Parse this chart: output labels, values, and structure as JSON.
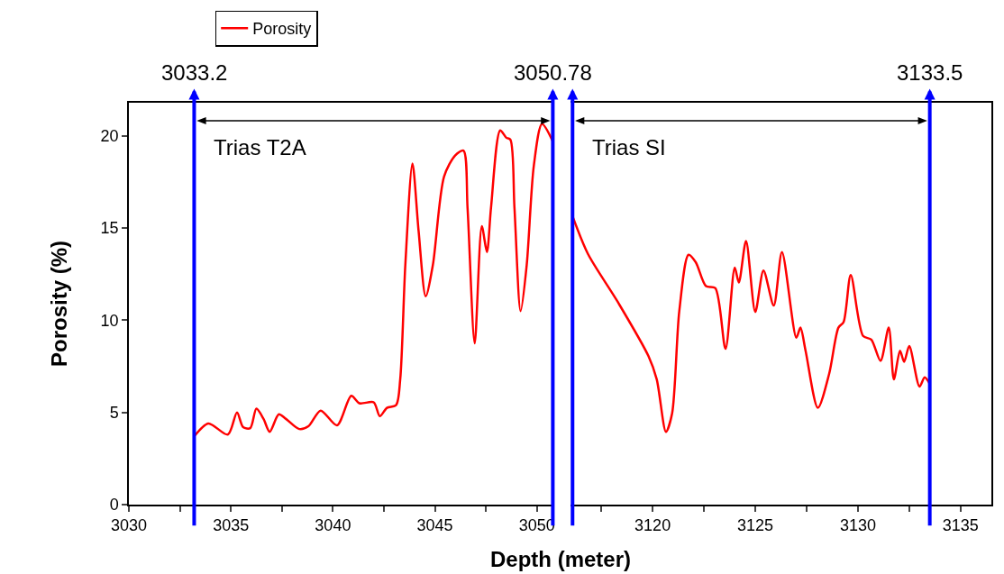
{
  "chart_data": [
    {
      "type": "line",
      "xlabel": "Depth (meter)",
      "ylabel": "Porosity (%)",
      "legend": "top",
      "xlim": [
        3030,
        3050.8
      ],
      "xticks": [
        3030,
        {
          "value": 3032.5,
          "label": null
        },
        3035,
        {
          "value": 3037.5,
          "label": null
        },
        3040,
        {
          "value": 3042.5,
          "label": null
        },
        3045,
        {
          "value": 3047.5,
          "label": null
        },
        3050
      ],
      "ylim": [
        0,
        21.8
      ],
      "yticks": [
        0,
        5,
        10,
        15,
        20
      ],
      "series": [
        {
          "name": "Porosity",
          "color": "#ff0000",
          "x": [
            3033.2,
            3033.9,
            3034.85,
            3035.3,
            3035.6,
            3035.95,
            3036.25,
            3036.6,
            3036.9,
            3037.35,
            3037.7,
            3038.35,
            3038.8,
            3039.4,
            3040.2,
            3040.9,
            3041.3,
            3042.0,
            3042.3,
            3042.65,
            3043.1,
            3043.3,
            3043.55,
            3043.9,
            3044.2,
            3044.55,
            3044.9,
            3045.45,
            3046.0,
            3046.4,
            3046.6,
            3046.95,
            3047.3,
            3047.55,
            3047.75,
            3048.2,
            3048.5,
            3048.7,
            3048.9,
            3049.2,
            3049.5,
            3049.85,
            3050.25,
            3050.78
          ],
          "values": [
            3.7,
            4.4,
            3.8,
            5.0,
            4.2,
            4.15,
            5.2,
            4.65,
            3.95,
            4.9,
            4.65,
            4.1,
            4.25,
            5.1,
            4.3,
            5.9,
            5.5,
            5.55,
            4.8,
            5.25,
            5.4,
            6.8,
            13.0,
            18.5,
            14.85,
            11.3,
            13.0,
            17.8,
            18.95,
            19.2,
            16.1,
            8.75,
            15.1,
            13.7,
            16.1,
            20.3,
            19.9,
            19.8,
            16.1,
            10.5,
            13.0,
            18.4,
            20.65,
            19.7
          ]
        }
      ],
      "ref_lines": [
        {
          "axis": "x",
          "value": 3033.2,
          "label": "3033.2",
          "color": "#0000ff"
        },
        {
          "axis": "x",
          "value": 3050.78,
          "label": "3050.78",
          "color": "#0000ff"
        }
      ],
      "annotations": [
        "Trias T2A"
      ]
    },
    {
      "type": "line",
      "tick_labels": "x",
      "xlim": [
        3116,
        3136.5
      ],
      "xticks": [
        {
          "value": 3117.5,
          "label": null
        },
        3120,
        {
          "value": 3122.5,
          "label": null
        },
        3125,
        {
          "value": 3127.5,
          "label": null
        },
        3130,
        {
          "value": 3132.5,
          "label": null
        },
        3135
      ],
      "ylim": [
        0,
        21.8
      ],
      "series": [
        {
          "color": "#ff0000",
          "x": [
            3116.1,
            3116.85,
            3118.3,
            3119.8,
            3120.2,
            3120.65,
            3120.95,
            3121.3,
            3121.75,
            3122.1,
            3122.6,
            3123.05,
            3123.55,
            3124.0,
            3124.2,
            3124.55,
            3125.0,
            3125.4,
            3125.9,
            3126.3,
            3127.0,
            3127.2,
            3127.45,
            3128.05,
            3128.6,
            3129.05,
            3129.3,
            3129.65,
            3130.25,
            3130.65,
            3131.1,
            3131.5,
            3131.75,
            3132.05,
            3132.25,
            3132.5,
            3133.0,
            3133.25,
            3133.5
          ],
          "values": [
            15.65,
            13.6,
            11.0,
            8.05,
            6.8,
            3.95,
            4.95,
            10.5,
            13.55,
            13.15,
            11.85,
            11.75,
            8.45,
            12.85,
            12.05,
            14.3,
            10.45,
            12.7,
            10.8,
            13.7,
            9.05,
            9.6,
            8.35,
            5.25,
            7.1,
            9.6,
            9.9,
            12.45,
            9.15,
            8.95,
            7.8,
            9.6,
            6.8,
            8.35,
            7.75,
            8.6,
            6.4,
            6.9,
            6.55
          ]
        }
      ],
      "ref_lines": [
        {
          "axis": "x",
          "value": 3116.1,
          "label": null,
          "color": "#0000ff"
        },
        {
          "axis": "x",
          "value": 3133.5,
          "label": "3133.5",
          "color": "#0000ff"
        }
      ],
      "annotations": [
        "Trias SI"
      ]
    }
  ]
}
